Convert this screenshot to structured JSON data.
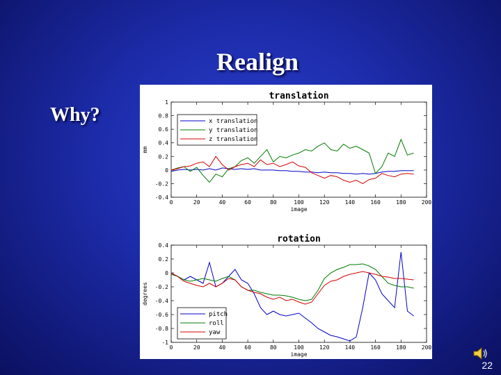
{
  "slide": {
    "title": "Realign",
    "bullet": "Why?",
    "slide_number": "22",
    "background_color": "#1c2ba8",
    "text_color": "#ffffff"
  },
  "speaker_icon": "speaker-icon",
  "chart_data": [
    {
      "type": "line",
      "title": "translation",
      "xlabel": "image",
      "ylabel": "mm",
      "xlim": [
        0,
        200
      ],
      "ylim": [
        -0.4,
        1
      ],
      "xticks": [
        0,
        20,
        40,
        60,
        80,
        100,
        120,
        140,
        160,
        180,
        200
      ],
      "yticks": [
        -0.4,
        -0.2,
        0,
        0.2,
        0.4,
        0.6,
        0.8,
        1
      ],
      "ytick_labels": [
        "-0.4",
        "-0.2",
        "0",
        "0.2",
        "0.4",
        "0.6",
        "0.8",
        "1"
      ],
      "legend_position": "top-left",
      "x": [
        0,
        5,
        10,
        15,
        20,
        25,
        30,
        35,
        40,
        45,
        50,
        55,
        60,
        65,
        70,
        75,
        80,
        85,
        90,
        95,
        100,
        105,
        110,
        115,
        120,
        125,
        130,
        135,
        140,
        145,
        150,
        155,
        160,
        165,
        170,
        175,
        180,
        185,
        190
      ],
      "series": [
        {
          "name": "x translation",
          "color": "#0000c8",
          "values": [
            -0.02,
            0.0,
            0.01,
            0.0,
            0.01,
            0.0,
            0.02,
            0.0,
            0.03,
            0.02,
            0.01,
            0.02,
            0.01,
            0.02,
            0.0,
            0.0,
            0.0,
            -0.01,
            -0.01,
            -0.02,
            -0.02,
            -0.03,
            -0.03,
            -0.04,
            -0.03,
            -0.04,
            -0.04,
            -0.05,
            -0.05,
            -0.06,
            -0.05,
            -0.06,
            -0.05,
            -0.03,
            -0.02,
            -0.02,
            -0.01,
            -0.01,
            -0.01
          ]
        },
        {
          "name": "y translation",
          "color": "#007a00",
          "values": [
            0.0,
            0.03,
            0.05,
            -0.02,
            0.04,
            -0.08,
            -0.18,
            -0.06,
            -0.1,
            0.02,
            0.05,
            0.14,
            0.18,
            0.1,
            0.2,
            0.3,
            0.12,
            0.2,
            0.18,
            0.22,
            0.25,
            0.3,
            0.28,
            0.35,
            0.4,
            0.3,
            0.28,
            0.38,
            0.32,
            0.35,
            0.3,
            0.25,
            -0.05,
            0.05,
            0.25,
            0.2,
            0.45,
            0.22,
            0.25
          ]
        },
        {
          "name": "z translation",
          "color": "#d00000",
          "values": [
            0.0,
            0.02,
            0.05,
            0.06,
            0.1,
            0.12,
            0.05,
            0.2,
            0.08,
            0.0,
            0.05,
            0.08,
            0.1,
            0.05,
            0.15,
            0.08,
            0.1,
            0.05,
            0.08,
            0.12,
            0.06,
            0.04,
            -0.04,
            -0.08,
            -0.12,
            -0.08,
            -0.1,
            -0.15,
            -0.18,
            -0.15,
            -0.2,
            -0.14,
            -0.12,
            -0.05,
            -0.08,
            -0.1,
            -0.06,
            -0.05,
            -0.06
          ]
        }
      ]
    },
    {
      "type": "line",
      "title": "rotation",
      "xlabel": "image",
      "ylabel": "degrees",
      "xlim": [
        0,
        200
      ],
      "ylim": [
        -1,
        0.4
      ],
      "xticks": [
        0,
        20,
        40,
        60,
        80,
        100,
        120,
        140,
        160,
        180,
        200
      ],
      "yticks": [
        -1,
        -0.8,
        -0.6,
        -0.4,
        -0.2,
        0,
        0.2,
        0.4
      ],
      "ytick_labels": [
        "-1",
        "-0.8",
        "-0.6",
        "-0.4",
        "-0.2",
        "0",
        "0.2",
        "0.4"
      ],
      "legend_position": "bottom-left",
      "x": [
        0,
        5,
        10,
        15,
        20,
        25,
        30,
        35,
        40,
        45,
        50,
        55,
        60,
        65,
        70,
        75,
        80,
        85,
        90,
        95,
        100,
        105,
        110,
        115,
        120,
        125,
        130,
        135,
        140,
        145,
        150,
        155,
        160,
        165,
        170,
        175,
        180,
        185,
        190
      ],
      "series": [
        {
          "name": "pitch",
          "color": "#0000c8",
          "values": [
            0.0,
            -0.05,
            -0.1,
            -0.05,
            -0.1,
            -0.15,
            0.15,
            -0.2,
            -0.15,
            -0.05,
            0.05,
            -0.1,
            -0.15,
            -0.3,
            -0.5,
            -0.6,
            -0.55,
            -0.6,
            -0.62,
            -0.6,
            -0.58,
            -0.65,
            -0.72,
            -0.8,
            -0.85,
            -0.9,
            -0.92,
            -0.95,
            -0.98,
            -0.92,
            -0.5,
            0.0,
            -0.1,
            -0.3,
            -0.4,
            -0.5,
            0.3,
            -0.55,
            -0.62
          ]
        },
        {
          "name": "roll",
          "color": "#007a00",
          "values": [
            -0.02,
            -0.05,
            -0.1,
            -0.12,
            -0.1,
            -0.08,
            -0.1,
            -0.12,
            -0.08,
            -0.05,
            -0.1,
            -0.2,
            -0.25,
            -0.25,
            -0.28,
            -0.3,
            -0.32,
            -0.32,
            -0.33,
            -0.35,
            -0.38,
            -0.4,
            -0.38,
            -0.25,
            -0.08,
            0.0,
            0.05,
            0.08,
            0.12,
            0.12,
            0.13,
            0.1,
            0.05,
            -0.05,
            -0.15,
            -0.18,
            -0.2,
            -0.2,
            -0.22
          ]
        },
        {
          "name": "yaw",
          "color": "#d00000",
          "values": [
            0.0,
            -0.05,
            -0.12,
            -0.15,
            -0.18,
            -0.2,
            -0.15,
            -0.2,
            -0.15,
            -0.08,
            -0.1,
            -0.2,
            -0.25,
            -0.28,
            -0.3,
            -0.35,
            -0.38,
            -0.35,
            -0.4,
            -0.38,
            -0.42,
            -0.45,
            -0.42,
            -0.3,
            -0.18,
            -0.12,
            -0.1,
            -0.05,
            -0.02,
            0.0,
            0.02,
            0.0,
            -0.02,
            -0.05,
            -0.06,
            -0.08,
            -0.08,
            -0.09,
            -0.1
          ]
        }
      ]
    }
  ]
}
